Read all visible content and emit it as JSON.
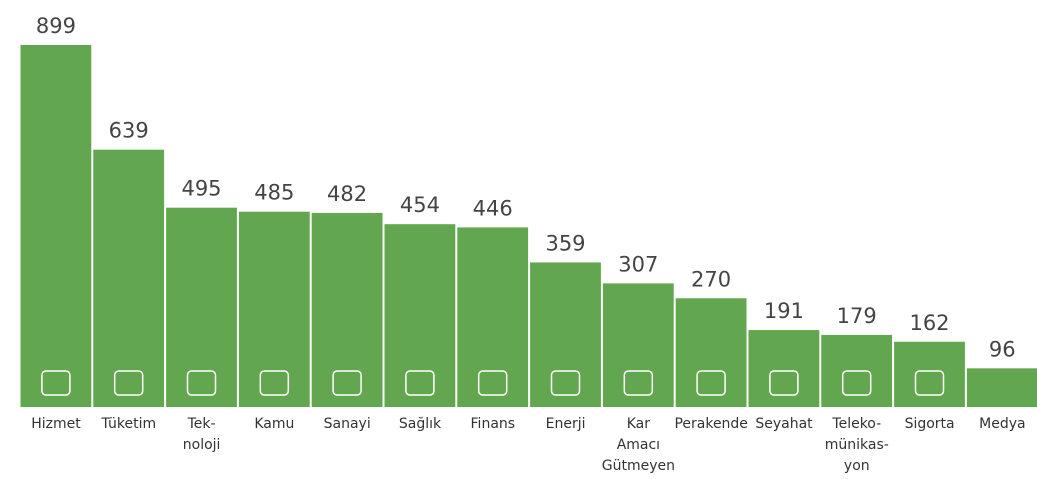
{
  "chart_data": {
    "type": "bar",
    "categories": [
      "Hizmet",
      "Tüketim",
      "Tek-\nnoloji",
      "Kamu",
      "Sanayi",
      "Sağlık",
      "Finans",
      "Enerji",
      "Kar\nAmacı\nGütmeyen",
      "Perakende",
      "Seyahat",
      "Teleko-\nmünikas-\nyon",
      "Sigorta",
      "Medya"
    ],
    "values": [
      899,
      639,
      495,
      485,
      482,
      454,
      446,
      359,
      307,
      270,
      191,
      179,
      162,
      96
    ],
    "color": "#62a64f"
  }
}
